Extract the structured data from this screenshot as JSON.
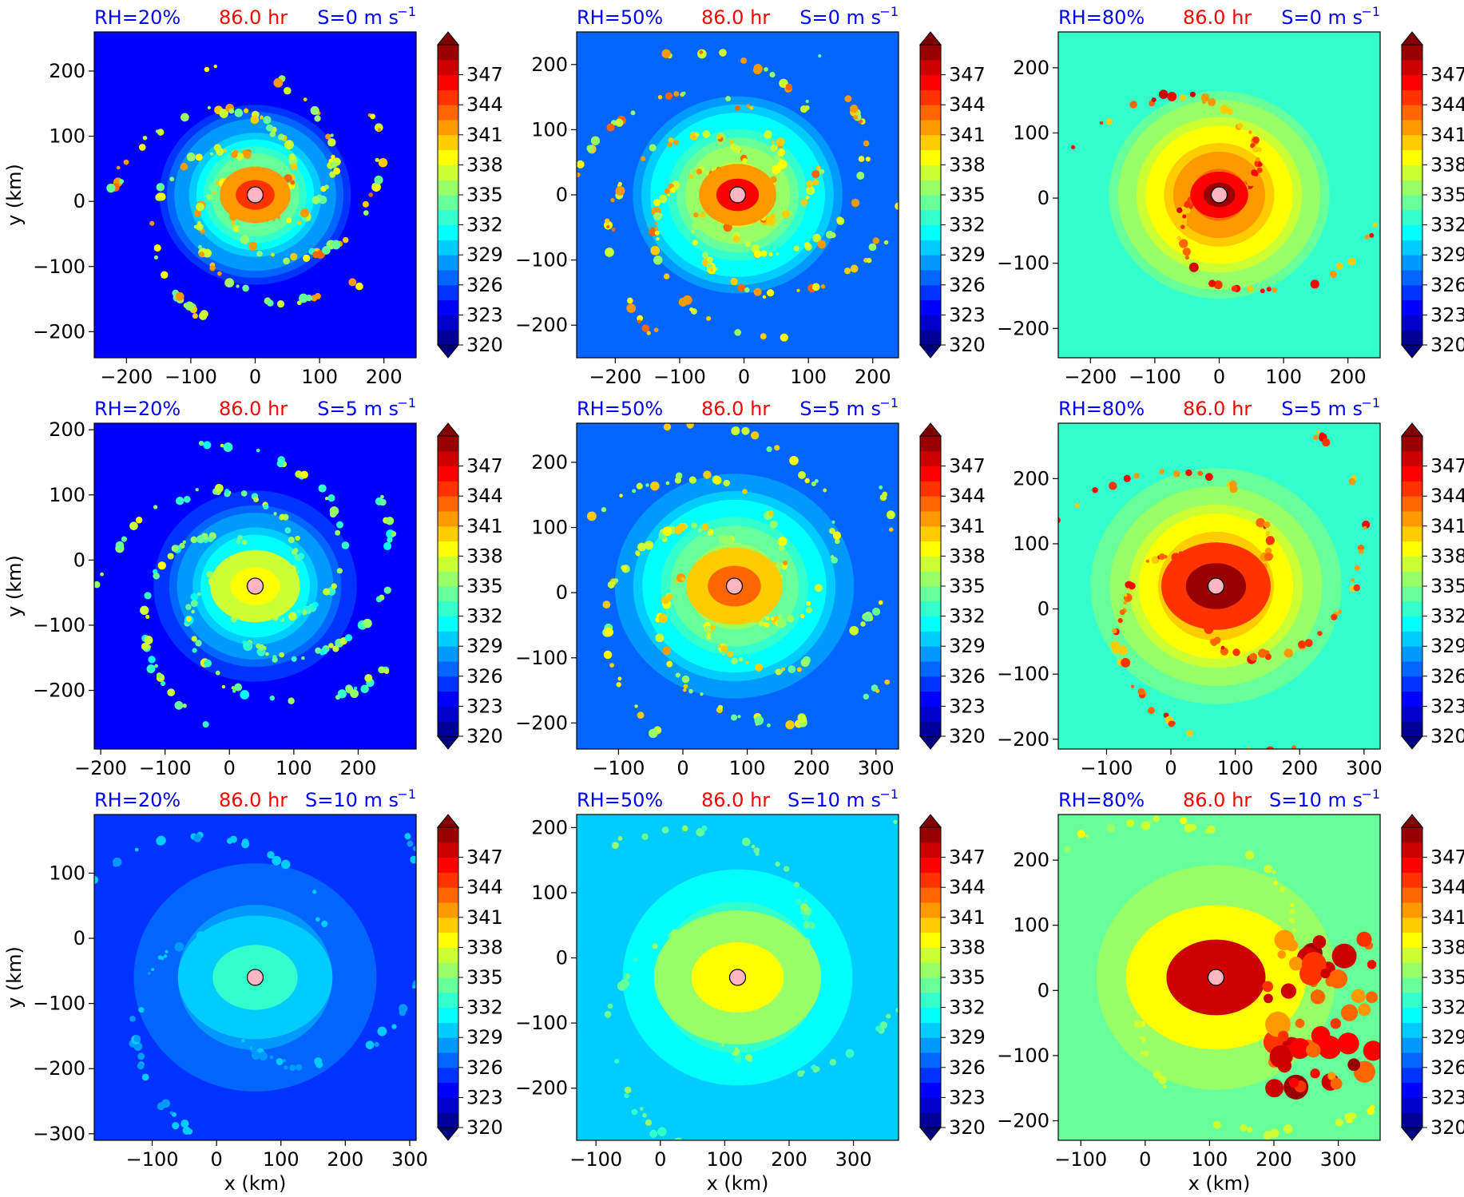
{
  "chart_data": {
    "type": "heatmap",
    "time_label": "86.0 hr",
    "colors": {
      "rh": "#0000ff",
      "time": "#ff0000",
      "shear": "#0000ff",
      "center_marker": "#ffb6c1"
    },
    "colorbar": {
      "ticks": [
        "347",
        "344",
        "341",
        "338",
        "335",
        "332",
        "329",
        "326",
        "323",
        "320"
      ],
      "range": [
        320,
        350
      ],
      "extend": "both",
      "colormap": "jet"
    },
    "xlabel": "x (km)",
    "ylabel": "y (km)",
    "panels": [
      {
        "rh": "RH=20%",
        "shear": "S=0 m s",
        "exp": "−1",
        "xlim": [
          -250,
          250
        ],
        "ylim": [
          -240,
          260
        ],
        "xticks": [
          "−200",
          "−100",
          "0",
          "100",
          "200"
        ],
        "yticks": [
          "200",
          "100",
          "0",
          "−100",
          "−200"
        ],
        "center": [
          0,
          10
        ],
        "base": 324,
        "core": 341,
        "peak": 345,
        "core_r": 55,
        "field_r": 160,
        "band": 5,
        "show_ylabel": true,
        "show_xlabel": false
      },
      {
        "rh": "RH=50%",
        "shear": "S=0 m s",
        "exp": "−1",
        "xlim": [
          -260,
          240
        ],
        "ylim": [
          -250,
          250
        ],
        "xticks": [
          "−200",
          "−100",
          "0",
          "100",
          "200"
        ],
        "yticks": [
          "200",
          "100",
          "0",
          "−100",
          "−200"
        ],
        "center": [
          -10,
          0
        ],
        "base": 326,
        "core": 342,
        "peak": 346,
        "core_r": 60,
        "field_r": 190,
        "band": 6,
        "show_ylabel": false,
        "show_xlabel": false
      },
      {
        "rh": "RH=80%",
        "shear": "S=0 m s",
        "exp": "−1",
        "xlim": [
          -250,
          250
        ],
        "ylim": [
          -245,
          255
        ],
        "xticks": [
          "−200",
          "−100",
          "0",
          "100",
          "200"
        ],
        "yticks": [
          "200",
          "100",
          "0",
          "−100",
          "−200"
        ],
        "center": [
          0,
          5
        ],
        "base": 332,
        "core": 346,
        "peak": 349,
        "core_r": 45,
        "field_r": 200,
        "band": 2,
        "show_ylabel": false,
        "show_xlabel": false
      },
      {
        "rh": "RH=20%",
        "shear": "S=5 m s",
        "exp": "−1",
        "xlim": [
          -210,
          290
        ],
        "ylim": [
          -290,
          210
        ],
        "xticks": [
          "−200",
          "−100",
          "0",
          "100",
          "200"
        ],
        "yticks": [
          "200",
          "100",
          "0",
          "−100",
          "−200"
        ],
        "center": [
          40,
          -40
        ],
        "base": 324,
        "core": 337,
        "peak": 338,
        "core_r": 70,
        "field_r": 170,
        "band": 5,
        "show_ylabel": true,
        "show_xlabel": false
      },
      {
        "rh": "RH=50%",
        "shear": "S=5 m s",
        "exp": "−1",
        "xlim": [
          -165,
          335
        ],
        "ylim": [
          -240,
          260
        ],
        "xticks": [
          "−100",
          "0",
          "100",
          "200",
          "300"
        ],
        "yticks": [
          "200",
          "100",
          "0",
          "−100",
          "−200"
        ],
        "center": [
          80,
          10
        ],
        "base": 327,
        "core": 340,
        "peak": 343,
        "core_r": 75,
        "field_r": 200,
        "band": 5,
        "show_ylabel": false,
        "show_xlabel": false
      },
      {
        "rh": "RH=80%",
        "shear": "S=5 m s",
        "exp": "−1",
        "xlim": [
          -175,
          325
        ],
        "ylim": [
          -215,
          285
        ],
        "xticks": [
          "−100",
          "0",
          "100",
          "200",
          "300"
        ],
        "yticks": [
          "200",
          "100",
          "0",
          "−100",
          "−200"
        ],
        "center": [
          70,
          35
        ],
        "base": 333,
        "core": 345,
        "peak": 349,
        "core_r": 85,
        "field_r": 210,
        "band": 3,
        "show_ylabel": false,
        "show_xlabel": false
      },
      {
        "rh": "RH=20%",
        "shear": "S=10 m s",
        "exp": "−1",
        "xlim": [
          -190,
          310
        ],
        "ylim": [
          -310,
          190
        ],
        "xticks": [
          "−100",
          "0",
          "100",
          "200",
          "300"
        ],
        "yticks": [
          "100",
          "0",
          "−100",
          "−200",
          "−300"
        ],
        "center": [
          60,
          -60
        ],
        "base": 325,
        "core": 330,
        "peak": 333,
        "core_r": 120,
        "field_r": 240,
        "band": 3,
        "show_ylabel": true,
        "show_xlabel": true
      },
      {
        "rh": "RH=50%",
        "shear": "S=10 m s",
        "exp": "−1",
        "xlim": [
          -130,
          370
        ],
        "ylim": [
          -280,
          220
        ],
        "xticks": [
          "−100",
          "0",
          "100",
          "200",
          "300"
        ],
        "yticks": [
          "200",
          "100",
          "0",
          "−100",
          "−200"
        ],
        "center": [
          120,
          -30
        ],
        "base": 329,
        "core": 335,
        "peak": 338,
        "core_r": 130,
        "field_r": 250,
        "band": 3,
        "show_ylabel": false,
        "show_xlabel": true
      },
      {
        "rh": "RH=80%",
        "shear": "S=10 m s",
        "exp": "−1",
        "xlim": [
          -135,
          365
        ],
        "ylim": [
          -230,
          270
        ],
        "xticks": [
          "−100",
          "0",
          "100",
          "200",
          "300"
        ],
        "yticks": [
          "200",
          "100",
          "0",
          "−100",
          "−200"
        ],
        "center": [
          110,
          20
        ],
        "base": 334,
        "core": 338,
        "peak": 347,
        "core_r": 140,
        "field_r": 260,
        "band": 2,
        "show_ylabel": false,
        "show_xlabel": true
      }
    ]
  }
}
